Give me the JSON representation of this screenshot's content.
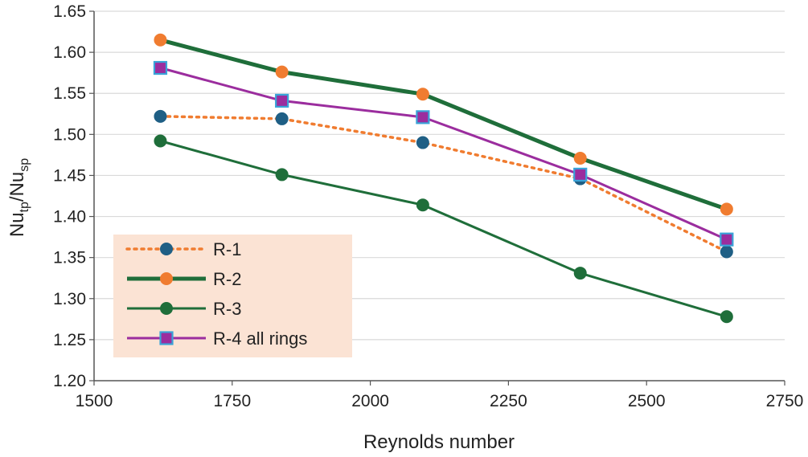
{
  "chart_data": {
    "type": "line",
    "title": "",
    "xlabel": "Reynolds number",
    "ylabel": {
      "base1": "Nu",
      "sub1": "tp",
      "slash": "/",
      "base2": "Nu",
      "sub2": "sp"
    },
    "xlim": [
      1500,
      2750
    ],
    "ylim": [
      1.2,
      1.65
    ],
    "x_ticks": [
      "1500",
      "1750",
      "2000",
      "2250",
      "2500",
      "2750"
    ],
    "x_tick_values": [
      1500,
      1750,
      2000,
      2250,
      2500,
      2750
    ],
    "y_ticks": [
      "1.20",
      "1.25",
      "1.30",
      "1.35",
      "1.40",
      "1.45",
      "1.50",
      "1.55",
      "1.60",
      "1.65"
    ],
    "y_tick_values": [
      1.2,
      1.25,
      1.3,
      1.35,
      1.4,
      1.45,
      1.5,
      1.55,
      1.6,
      1.65
    ],
    "grid": "horizontal",
    "legend_position": "bottom-left",
    "x": [
      1620,
      1840,
      2095,
      2380,
      2645
    ],
    "series": [
      {
        "name": "R-1",
        "values": [
          1.522,
          1.519,
          1.49,
          1.446,
          1.357
        ],
        "line_color": "#f07c30",
        "dash": "dotted",
        "marker": "circle",
        "marker_fill": "#1f5f85",
        "marker_stroke": "#1f5f85"
      },
      {
        "name": "R-2",
        "values": [
          1.615,
          1.576,
          1.549,
          1.471,
          1.409
        ],
        "line_color": "#1f6e3a",
        "dash": "solid",
        "marker": "circle",
        "marker_fill": "#f07c30",
        "marker_stroke": "#f07c30",
        "thick": true
      },
      {
        "name": "R-3",
        "values": [
          1.492,
          1.451,
          1.414,
          1.331,
          1.278
        ],
        "line_color": "#1f6e3a",
        "dash": "solid",
        "marker": "circle",
        "marker_fill": "#1f6e3a",
        "marker_stroke": "#1f6e3a"
      },
      {
        "name": "R-4 all rings",
        "values": [
          1.581,
          1.541,
          1.521,
          1.451,
          1.372
        ],
        "line_color": "#9b2d9e",
        "dash": "solid",
        "marker": "square",
        "marker_fill": "#9b2d9e",
        "marker_stroke": "#3aa3d8"
      }
    ],
    "legend_background": "#fbe3d4"
  }
}
